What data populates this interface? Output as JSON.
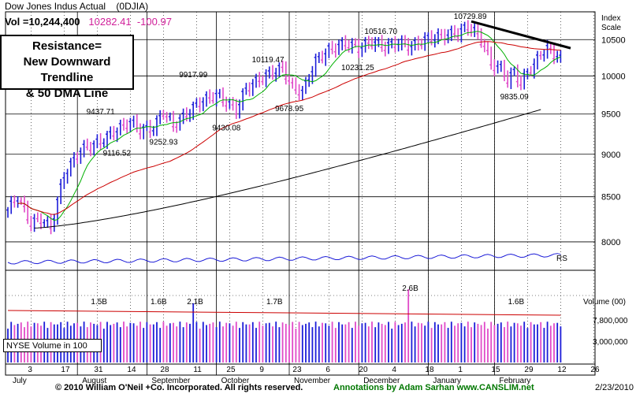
{
  "header": {
    "title": "Dow Jones Indus Actual",
    "symbol": "(0DJIA)",
    "vol_label": "Vol =10,244,400",
    "price": "10282.41",
    "change": "-100.97"
  },
  "callout": {
    "line1": "Resistance=",
    "line2": "New Downward Trendline",
    "line3": "& 50 DMA Line"
  },
  "footer": {
    "copyright": "© 2010 William O'Neil +Co. Incorporated. All rights reserved.",
    "annotations": "Annotations by Adam Sarhan www.CANSLIM.net",
    "date": "2/23/2010"
  },
  "colors": {
    "up": "#1c1cd8",
    "down": "#e04ac8",
    "ma50": "#cc0000",
    "ma200": "#000000",
    "ma10": "#00b000",
    "rs": "#1c1cd8",
    "highlight": "#007700"
  },
  "chart_data": [
    {
      "type": "candlestick",
      "title": "Dow Jones Indus Actual",
      "axis_title": "Index Scale",
      "y_scale": "log",
      "ylim": [
        7700,
        10900
      ],
      "y_ticks": [
        8000,
        8500,
        9000,
        9500,
        10000,
        10500
      ],
      "y_tick_labels": [
        "8000",
        "8500",
        "9000",
        "9500",
        "10000",
        "10500"
      ],
      "x_tick_labels": [
        "3",
        "17",
        "31",
        "14",
        "28",
        "11",
        "25",
        "9",
        "23",
        "6",
        "20",
        "4",
        "18",
        "1",
        "15",
        "29",
        "12",
        "26"
      ],
      "month_labels": [
        "July",
        "August",
        "September",
        "October",
        "November",
        "December",
        "January",
        "February"
      ],
      "anchors": [
        {
          "i": 0,
          "v": 8350
        },
        {
          "i": 3,
          "v": 8500
        },
        {
          "i": 7,
          "v": 8200
        },
        {
          "i": 10,
          "v": 8250
        },
        {
          "i": 13,
          "v": 8150
        },
        {
          "i": 17,
          "v": 8750
        },
        {
          "i": 22,
          "v": 9050
        },
        {
          "i": 28,
          "v": 9150
        },
        {
          "i": 33,
          "v": 9300
        },
        {
          "i": 37,
          "v": 9400
        },
        {
          "i": 40,
          "v": 9300
        },
        {
          "i": 44,
          "v": 9320
        },
        {
          "i": 47,
          "v": 9530
        },
        {
          "i": 50,
          "v": 9350
        },
        {
          "i": 54,
          "v": 9500
        },
        {
          "i": 58,
          "v": 9650
        },
        {
          "i": 63,
          "v": 9750
        },
        {
          "i": 66,
          "v": 9650
        },
        {
          "i": 69,
          "v": 9550
        },
        {
          "i": 72,
          "v": 9830
        },
        {
          "i": 76,
          "v": 9950
        },
        {
          "i": 80,
          "v": 10050
        },
        {
          "i": 83,
          "v": 10100
        },
        {
          "i": 86,
          "v": 9850
        },
        {
          "i": 89,
          "v": 9780
        },
        {
          "i": 93,
          "v": 10200
        },
        {
          "i": 97,
          "v": 10350
        },
        {
          "i": 102,
          "v": 10450
        },
        {
          "i": 106,
          "v": 10380
        },
        {
          "i": 110,
          "v": 10470
        },
        {
          "i": 114,
          "v": 10400
        },
        {
          "i": 118,
          "v": 10460
        },
        {
          "i": 122,
          "v": 10400
        },
        {
          "i": 126,
          "v": 10500
        },
        {
          "i": 131,
          "v": 10550
        },
        {
          "i": 136,
          "v": 10600
        },
        {
          "i": 139,
          "v": 10680
        },
        {
          "i": 141,
          "v": 10620
        },
        {
          "i": 144,
          "v": 10420
        },
        {
          "i": 146,
          "v": 10150
        },
        {
          "i": 149,
          "v": 10100
        },
        {
          "i": 151,
          "v": 9950
        },
        {
          "i": 153,
          "v": 10050
        },
        {
          "i": 155,
          "v": 9900
        },
        {
          "i": 157,
          "v": 10050
        },
        {
          "i": 159,
          "v": 10150
        },
        {
          "i": 161,
          "v": 10300
        },
        {
          "i": 163,
          "v": 10380
        },
        {
          "i": 165,
          "v": 10282
        }
      ],
      "annotations": [
        {
          "text": "10729.89",
          "i": 139,
          "v": 10729.89
        },
        {
          "text": "10516.70",
          "i": 112,
          "v": 10516.7
        },
        {
          "text": "10119.47",
          "i": 78,
          "v": 10119.47
        },
        {
          "text": "10231.25",
          "i": 105,
          "v": 10231.25
        },
        {
          "text": "9917.99",
          "i": 56,
          "v": 9917.99
        },
        {
          "text": "9678.95",
          "i": 85,
          "v": 9678.95
        },
        {
          "text": "9437.71",
          "i": 28,
          "v": 9437.71
        },
        {
          "text": "9430.08",
          "i": 66,
          "v": 9430.08
        },
        {
          "text": "9252.93",
          "i": 47,
          "v": 9252.93
        },
        {
          "text": "9116.52",
          "i": 33,
          "v": 9116.52
        },
        {
          "text": "9835.09",
          "i": 153,
          "v": 9835.09
        }
      ],
      "trendline": {
        "from": {
          "i": 140,
          "v": 10760
        },
        "to": {
          "i": 170,
          "v": 10380
        }
      },
      "rs_label": "RS",
      "volume": {
        "axis_title": "Volume (00)",
        "tick_labels": [
          "7,800,000",
          "3,000,000"
        ],
        "peak_labels": [
          {
            "text": "1.5B",
            "i": 27
          },
          {
            "text": "1.6B",
            "i": 45
          },
          {
            "text": "2.1B",
            "i": 56
          },
          {
            "text": "1.7B",
            "i": 80
          },
          {
            "text": "2.6B",
            "i": 121
          },
          {
            "text": "1.6B",
            "i": 153
          }
        ],
        "spikes": [
          {
            "i": 56,
            "v": 2.1
          },
          {
            "i": 121,
            "v": 2.6
          }
        ],
        "legend": "NYSE Volume in 100"
      }
    }
  ]
}
